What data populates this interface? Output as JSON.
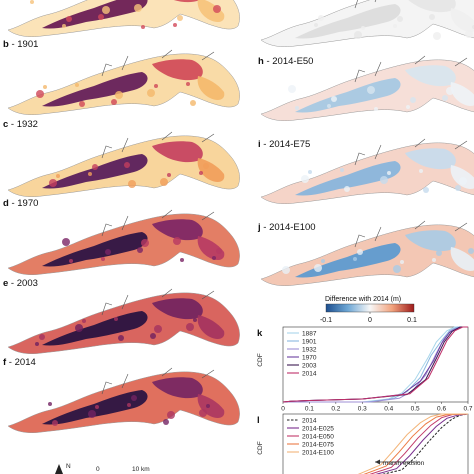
{
  "panels_left": [
    {
      "letter": "",
      "year": "",
      "palette": "yr1887"
    },
    {
      "letter": "b",
      "year": "1901",
      "palette": "yr1901"
    },
    {
      "letter": "c",
      "year": "1932",
      "palette": "yr1932"
    },
    {
      "letter": "d",
      "year": "1970",
      "palette": "yr1970"
    },
    {
      "letter": "e",
      "year": "2003",
      "palette": "yr2003"
    },
    {
      "letter": "f",
      "year": "2014",
      "palette": "yr2014"
    }
  ],
  "panels_right": [
    {
      "letter": "",
      "scenario": "",
      "palette": "dg"
    },
    {
      "letter": "h",
      "scenario": "2014-E50",
      "palette": "d50"
    },
    {
      "letter": "i",
      "scenario": "2014-E75",
      "palette": "d75"
    },
    {
      "letter": "j",
      "scenario": "2014-E100",
      "palette": "d100"
    }
  ],
  "colorbar": {
    "title": "Difference with 2014 (m)",
    "ticks": [
      "-0.1",
      "0",
      "0.1"
    ],
    "colors": [
      "#1d4f8f",
      "#6fa8d6",
      "#f7f7f7",
      "#f2a37e",
      "#9e1b1b"
    ]
  },
  "scalebar": {
    "north": "N",
    "zero": "0",
    "distance": "10 km"
  },
  "palettes": {
    "yr1887": {
      "low": "#6b1e54",
      "mid": "#d24a5a",
      "high": "#f6c27a",
      "pale": "#fbe3b8"
    },
    "yr1901": {
      "low": "#65205a",
      "mid": "#cf4657",
      "high": "#f4b86c",
      "pale": "#f9dba7"
    },
    "yr1932": {
      "low": "#5a1f5c",
      "mid": "#c33d5e",
      "high": "#f19d5a",
      "pale": "#f8d59c"
    },
    "yr1970": {
      "low": "#2e1544",
      "mid": "#7a2465",
      "high": "#b63a63",
      "pale": "#e37e65"
    },
    "yr2003": {
      "low": "#2a1340",
      "mid": "#6f215f",
      "high": "#a3325f",
      "pale": "#d9655f"
    },
    "yr2014": {
      "low": "#2b1442",
      "mid": "#732363",
      "high": "#ab3662",
      "pale": "#e0705e"
    },
    "dg": {
      "low": "#dcdcdc",
      "mid": "#e6e6e6",
      "high": "#efefef",
      "pale": "#f4f4f4"
    },
    "d50": {
      "low": "#a7c8e3",
      "mid": "#d7e5f0",
      "high": "#eef3f7",
      "pale": "#f6dfd8"
    },
    "d75": {
      "low": "#89b5dc",
      "mid": "#c6dbed",
      "high": "#ecf2f7",
      "pale": "#f5d4c8"
    },
    "d100": {
      "low": "#5e9bd0",
      "mid": "#a9cbe6",
      "high": "#e8f0f6",
      "pale": "#f3c7b4"
    }
  },
  "chart_data": [
    {
      "panel": "k",
      "type": "line",
      "title": "",
      "xlabel": "",
      "ylabel": "CDF",
      "xlim": [
        0,
        0.7
      ],
      "ylim": [
        0,
        1
      ],
      "x_ticks": [
        "0",
        "0.1",
        "0.2",
        "0.3",
        "0.4",
        "0.5",
        "0.6",
        "0.7"
      ],
      "legend_position": "top-left",
      "series": [
        {
          "name": "1887",
          "color": "#a8d6ea",
          "dash": "solid",
          "x": [
            0,
            0.3,
            0.4,
            0.45,
            0.5,
            0.55,
            0.58,
            0.62,
            0.65,
            0.7
          ],
          "y": [
            0,
            0,
            0.04,
            0.12,
            0.3,
            0.6,
            0.8,
            0.95,
            1,
            1
          ]
        },
        {
          "name": "1901",
          "color": "#8ab8e0",
          "dash": "solid",
          "x": [
            0,
            0.32,
            0.42,
            0.47,
            0.52,
            0.56,
            0.6,
            0.63,
            0.66,
            0.7
          ],
          "y": [
            0,
            0,
            0.05,
            0.14,
            0.33,
            0.62,
            0.82,
            0.95,
            1,
            1
          ]
        },
        {
          "name": "1932",
          "color": "#9f8fd6",
          "dash": "solid",
          "x": [
            0,
            0.33,
            0.44,
            0.49,
            0.54,
            0.58,
            0.61,
            0.64,
            0.67,
            0.7
          ],
          "y": [
            0,
            0,
            0.05,
            0.15,
            0.36,
            0.65,
            0.85,
            0.96,
            1,
            1
          ]
        },
        {
          "name": "1970",
          "color": "#6b3fa0",
          "dash": "solid",
          "x": [
            0,
            0.03,
            0.1,
            0.3,
            0.45,
            0.52,
            0.57,
            0.6,
            0.63,
            0.67,
            0.7
          ],
          "y": [
            0,
            0.01,
            0.02,
            0.04,
            0.1,
            0.28,
            0.55,
            0.78,
            0.93,
            1,
            1
          ]
        },
        {
          "name": "2003",
          "color": "#3d1a52",
          "dash": "solid",
          "x": [
            0,
            0.03,
            0.1,
            0.3,
            0.47,
            0.54,
            0.58,
            0.61,
            0.64,
            0.67,
            0.7
          ],
          "y": [
            0,
            0.01,
            0.02,
            0.04,
            0.1,
            0.3,
            0.58,
            0.8,
            0.94,
            1,
            1
          ]
        },
        {
          "name": "2014",
          "color": "#c0306a",
          "dash": "solid",
          "x": [
            0,
            0.03,
            0.1,
            0.3,
            0.48,
            0.55,
            0.59,
            0.62,
            0.65,
            0.68,
            0.7
          ],
          "y": [
            0,
            0.01,
            0.02,
            0.04,
            0.11,
            0.32,
            0.6,
            0.82,
            0.95,
            1,
            1
          ]
        }
      ]
    },
    {
      "panel": "l",
      "type": "line",
      "title": "",
      "xlabel": "",
      "ylabel": "CDF",
      "ylim": [
        0,
        1
      ],
      "legend_position": "top-left",
      "annotations": [
        "marsh erosion"
      ],
      "series": [
        {
          "name": "2014",
          "color": "#222222",
          "dash": "dashed",
          "x": [
            0,
            0.35,
            0.45,
            0.5,
            0.55,
            0.6,
            0.64,
            0.67,
            0.7
          ],
          "y": [
            0,
            0,
            0.1,
            0.3,
            0.55,
            0.78,
            0.92,
            0.98,
            1
          ]
        },
        {
          "name": "2014-E025",
          "color": "#7a2f8e",
          "dash": "solid",
          "x": [
            0,
            0.33,
            0.43,
            0.48,
            0.53,
            0.58,
            0.62,
            0.66,
            0.7
          ],
          "y": [
            0,
            0,
            0.12,
            0.33,
            0.58,
            0.8,
            0.93,
            0.98,
            1
          ]
        },
        {
          "name": "2014-E050",
          "color": "#c23a6a",
          "dash": "solid",
          "x": [
            0,
            0.31,
            0.41,
            0.46,
            0.51,
            0.56,
            0.6,
            0.64,
            0.7
          ],
          "y": [
            0,
            0,
            0.14,
            0.36,
            0.61,
            0.82,
            0.94,
            0.99,
            1
          ]
        },
        {
          "name": "2014-E075",
          "color": "#ec7b45",
          "dash": "solid",
          "x": [
            0,
            0.29,
            0.39,
            0.44,
            0.49,
            0.54,
            0.58,
            0.62,
            0.7
          ],
          "y": [
            0,
            0,
            0.16,
            0.39,
            0.64,
            0.84,
            0.95,
            0.99,
            1
          ]
        },
        {
          "name": "2014-E100",
          "color": "#f3b57a",
          "dash": "solid",
          "x": [
            0,
            0.27,
            0.37,
            0.42,
            0.47,
            0.52,
            0.56,
            0.6,
            0.7
          ],
          "y": [
            0,
            0,
            0.18,
            0.42,
            0.67,
            0.86,
            0.96,
            1,
            1
          ]
        }
      ]
    }
  ]
}
